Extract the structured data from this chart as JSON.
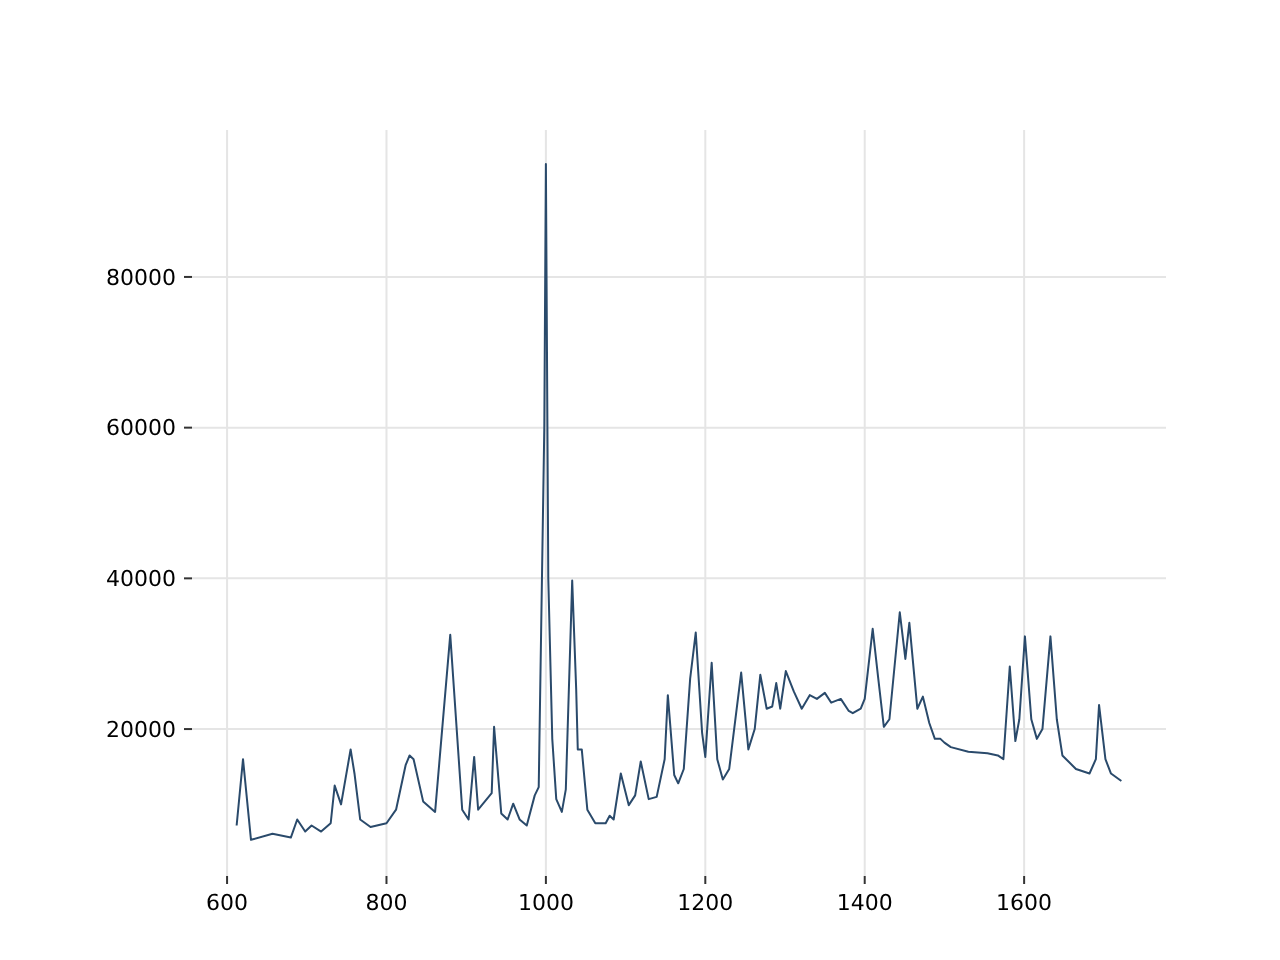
{
  "chart_data": {
    "type": "line",
    "x": [
      612,
      620,
      630,
      657,
      680,
      688,
      698,
      706,
      718,
      730,
      735,
      743,
      755,
      760,
      767,
      780,
      800,
      812,
      824,
      829,
      834,
      846,
      861,
      880,
      895,
      903,
      910,
      915,
      932,
      935,
      944,
      952,
      959,
      967,
      976,
      986,
      991,
      998,
      1000,
      1003,
      1008,
      1013,
      1020,
      1025,
      1033,
      1038,
      1040,
      1045,
      1052,
      1062,
      1075,
      1080,
      1085,
      1094,
      1104,
      1112,
      1119,
      1129,
      1139,
      1149,
      1153,
      1161,
      1166,
      1173,
      1181,
      1188,
      1196,
      1200,
      1208,
      1215,
      1222,
      1230,
      1245,
      1254,
      1262,
      1269,
      1277,
      1284,
      1289,
      1294,
      1301,
      1311,
      1321,
      1331,
      1340,
      1350,
      1358,
      1370,
      1380,
      1385,
      1395,
      1400,
      1410,
      1417,
      1424,
      1431,
      1444,
      1451,
      1456,
      1466,
      1473,
      1481,
      1488,
      1495,
      1500,
      1508,
      1530,
      1554,
      1567,
      1574,
      1582,
      1589,
      1594,
      1601,
      1609,
      1616,
      1623,
      1633,
      1641,
      1648,
      1665,
      1682,
      1690,
      1694,
      1702,
      1709,
      1722
    ],
    "series": [
      {
        "color": "#2a4a6b",
        "values": [
          7200,
          16000,
          5300,
          6100,
          5600,
          8000,
          6400,
          7200,
          6400,
          7500,
          12500,
          10000,
          17300,
          14000,
          8000,
          7000,
          7500,
          9300,
          15200,
          16500,
          16000,
          10400,
          9000,
          32500,
          9300,
          8000,
          16300,
          9300,
          11500,
          20300,
          8800,
          8000,
          10100,
          8000,
          7200,
          11200,
          12300,
          60000,
          95000,
          40000,
          18700,
          10700,
          9000,
          12000,
          39700,
          25300,
          17300,
          17300,
          9300,
          7500,
          7500,
          8500,
          8000,
          14100,
          9900,
          11200,
          15700,
          10700,
          11000,
          16000,
          24500,
          13900,
          12800,
          14700,
          26700,
          32800,
          19500,
          16300,
          28800,
          16000,
          13300,
          14700,
          27500,
          17300,
          20000,
          27200,
          22700,
          23000,
          26100,
          22700,
          27700,
          25000,
          22700,
          24500,
          24000,
          24800,
          23500,
          24000,
          22400,
          22100,
          22700,
          24000,
          33300,
          26700,
          20300,
          21300,
          35500,
          29300,
          34100,
          22700,
          24300,
          20800,
          18700,
          18700,
          18200,
          17600,
          17000,
          16800,
          16500,
          16000,
          28300,
          18400,
          21300,
          32300,
          21300,
          18700,
          20000,
          32300,
          21300,
          16500,
          14700,
          14100,
          16000,
          23200,
          16000,
          14100,
          13100
        ]
      }
    ],
    "xlim": [
      556,
      1778
    ],
    "ylim": [
      500,
      99500
    ],
    "xticks": [
      600,
      800,
      1000,
      1200,
      1400,
      1600
    ],
    "yticks": [
      20000,
      40000,
      60000,
      80000
    ],
    "grid": true,
    "line_style": "solid",
    "marker": "none"
  }
}
